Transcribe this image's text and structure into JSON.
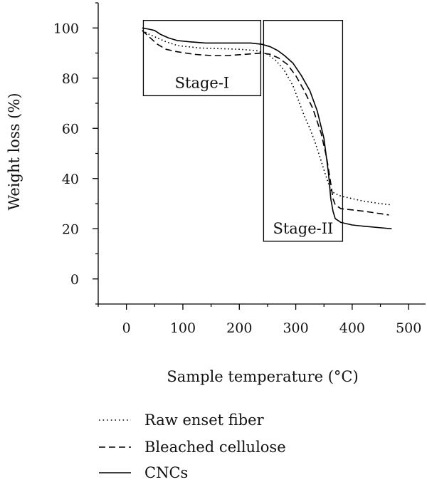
{
  "chart_data": {
    "type": "line",
    "title": "",
    "xlabel": "Sample temperature (°C)",
    "ylabel": "Weight loss (%)",
    "xlim": [
      -50,
      530
    ],
    "ylim": [
      -10,
      110
    ],
    "xticks": [
      0,
      100,
      200,
      300,
      400,
      500
    ],
    "yticks": [
      0,
      20,
      40,
      60,
      80,
      100
    ],
    "grid": false,
    "legend_position": "bottom-left, below plot",
    "series": [
      {
        "name": "Raw enset fiber",
        "style": "dotted",
        "color": "#000000",
        "x": [
          28,
          40,
          55,
          70,
          90,
          110,
          130,
          160,
          200,
          230,
          250,
          265,
          280,
          295,
          305,
          315,
          325,
          335,
          345,
          352,
          358,
          362,
          366,
          370,
          380,
          400,
          420,
          450,
          470
        ],
        "y": [
          99,
          97.5,
          96,
          94.5,
          93,
          92.5,
          92,
          91.8,
          91.5,
          91,
          89.5,
          87,
          83,
          77,
          71,
          65,
          60,
          54,
          47,
          42,
          38,
          35.5,
          34.5,
          34,
          33,
          32,
          31,
          30,
          29.5
        ]
      },
      {
        "name": "Bleached cellulose",
        "style": "dashed",
        "color": "#000000",
        "x": [
          28,
          40,
          55,
          70,
          90,
          120,
          150,
          180,
          210,
          240,
          255,
          270,
          285,
          300,
          315,
          330,
          345,
          355,
          362,
          366,
          370,
          380,
          400,
          420,
          450,
          465
        ],
        "y": [
          99,
          96.5,
          93.5,
          91.5,
          90.5,
          89.5,
          89,
          89,
          89.5,
          90,
          89.5,
          88,
          85.5,
          81,
          75,
          68,
          58,
          48,
          38,
          32,
          29.5,
          28,
          27.5,
          27,
          26,
          25.5
        ]
      },
      {
        "name": "CNCs",
        "style": "solid",
        "color": "#000000",
        "x": [
          28,
          40,
          50,
          60,
          75,
          90,
          110,
          140,
          180,
          220,
          240,
          255,
          268,
          280,
          295,
          310,
          325,
          338,
          350,
          358,
          362,
          366,
          370,
          380,
          400,
          420,
          445,
          470
        ],
        "y": [
          100,
          99.5,
          99,
          97.5,
          96,
          95,
          94.5,
          94,
          94,
          94,
          93.5,
          92.5,
          91,
          89,
          86,
          81,
          75,
          67,
          56,
          42,
          32,
          27,
          24,
          22.5,
          21.5,
          21,
          20.5,
          20
        ]
      }
    ],
    "annotations": [
      {
        "label": "Stage-I",
        "x_range": [
          30,
          238
        ],
        "y_range": [
          73,
          103
        ]
      },
      {
        "label": "Stage-II",
        "x_range": [
          243,
          383
        ],
        "y_range": [
          15,
          103
        ]
      }
    ]
  }
}
